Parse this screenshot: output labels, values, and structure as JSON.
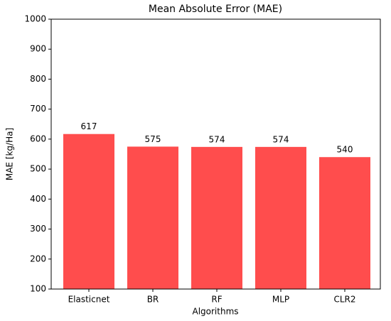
{
  "chart_data": {
    "type": "bar",
    "title": "Mean Absolute Error (MAE)",
    "x_label": "Algorithms",
    "y_label": "MAE [kg/Ha]",
    "categories": [
      "Elasticnet",
      "BR",
      "RF",
      "MLP",
      "CLR2"
    ],
    "values": [
      617,
      575,
      574,
      574,
      540
    ],
    "color": "#ff4d4d",
    "ylim": [
      100,
      1000
    ],
    "yticks": [
      100,
      200,
      300,
      400,
      500,
      600,
      700,
      800,
      900,
      1000
    ],
    "grid": false
  }
}
